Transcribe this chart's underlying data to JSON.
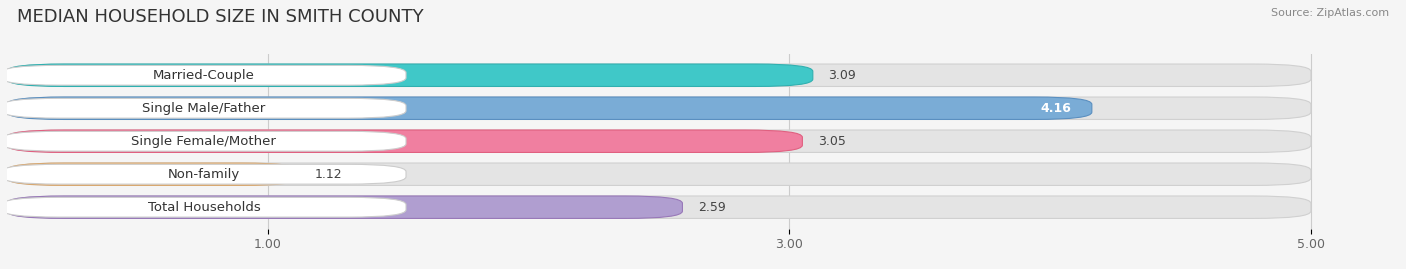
{
  "title": "MEDIAN HOUSEHOLD SIZE IN SMITH COUNTY",
  "source": "Source: ZipAtlas.com",
  "categories": [
    "Married-Couple",
    "Single Male/Father",
    "Single Female/Mother",
    "Non-family",
    "Total Households"
  ],
  "values": [
    3.09,
    4.16,
    3.05,
    1.12,
    2.59
  ],
  "bar_colors": [
    "#40c8c8",
    "#7aacd6",
    "#f07fa0",
    "#f5c897",
    "#b09ed0"
  ],
  "bar_edge_colors": [
    "#30b0b0",
    "#5a8fc0",
    "#e06080",
    "#d8a870",
    "#9878b8"
  ],
  "label_colors": [
    "#000000",
    "#ffffff",
    "#000000",
    "#000000",
    "#000000"
  ],
  "background_color": "#f5f5f5",
  "xlim_min": 0.0,
  "xlim_max": 5.3,
  "xaxis_min": 0.0,
  "xaxis_max": 5.0,
  "xticks": [
    1.0,
    3.0,
    5.0
  ],
  "title_fontsize": 13,
  "tick_fontsize": 9,
  "bar_label_fontsize": 9,
  "category_fontsize": 9.5
}
